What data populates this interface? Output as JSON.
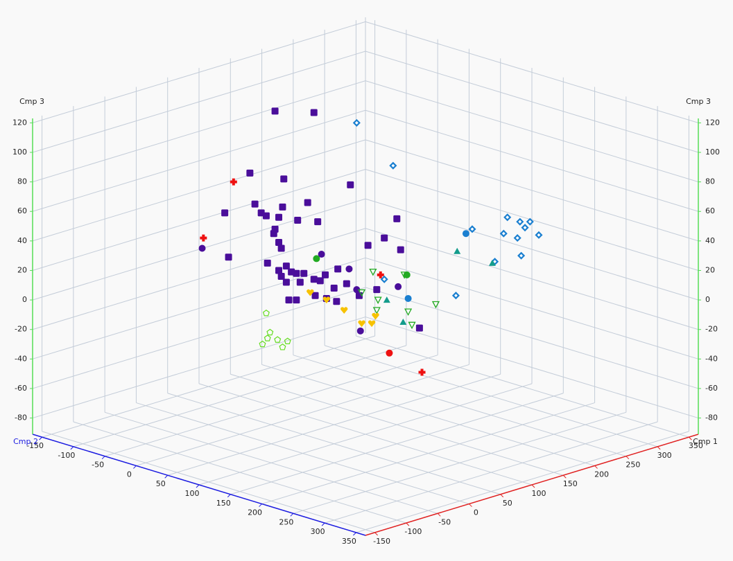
{
  "chart_data": {
    "type": "scatter3d",
    "xlabel": "Cmp 1",
    "ylabel": "Cmp 2",
    "zlabel": "Cmp 3",
    "xlim": [
      -165,
      365
    ],
    "ylim": [
      -165,
      365
    ],
    "zlim": [
      -91,
      123
    ],
    "xticks": [
      -150,
      -100,
      -50,
      0,
      50,
      100,
      150,
      200,
      250,
      300,
      350
    ],
    "yticks": [
      -150,
      -100,
      -50,
      0,
      50,
      100,
      150,
      200,
      250,
      300,
      350
    ],
    "zticks": [
      -80,
      -60,
      -40,
      -20,
      0,
      20,
      40,
      60,
      80,
      100,
      120
    ],
    "grid": true,
    "axis_colors": {
      "x": "#e02020",
      "y": "#1a1ae0",
      "z": "#55dd55"
    },
    "series": [
      {
        "color": "#4a0e9a",
        "marker": "square",
        "x": [
          28,
          59,
          8,
          35,
          88,
          -12,
          12,
          34,
          54,
          17,
          21,
          31,
          46,
          62,
          28,
          125,
          115,
          31,
          102,
          128,
          -9,
          22,
          33,
          37,
          31,
          33,
          41,
          45,
          51,
          59,
          68,
          78,
          37,
          48,
          64,
          85,
          75,
          109,
          39,
          45,
          60,
          69,
          77,
          95,
          143,
          27
        ],
        "y": [
          28,
          59,
          8,
          35,
          88,
          -12,
          12,
          34,
          54,
          17,
          21,
          31,
          46,
          62,
          28,
          125,
          115,
          31,
          102,
          128,
          -9,
          22,
          33,
          37,
          31,
          33,
          41,
          45,
          51,
          59,
          68,
          78,
          37,
          48,
          64,
          85,
          75,
          109,
          39,
          45,
          60,
          69,
          77,
          95,
          143,
          27
        ],
        "z": [
          128,
          127,
          86,
          82,
          78,
          59,
          65,
          63,
          66,
          59,
          57,
          56,
          54,
          53,
          48,
          55,
          42,
          39,
          37,
          34,
          29,
          25,
          35,
          23,
          20,
          16,
          19,
          18,
          18,
          14,
          17,
          21,
          12,
          12,
          13,
          11,
          8,
          7,
          0,
          0,
          3,
          1,
          -1,
          3,
          -19,
          45
        ]
      },
      {
        "color": "#4a0e9a",
        "marker": "circle",
        "x": [
          -30,
          65,
          87,
          93,
          126,
          96
        ],
        "y": [
          -30,
          65,
          87,
          93,
          126,
          96
        ],
        "z": [
          35,
          31,
          21,
          7,
          9,
          -21
        ]
      },
      {
        "color": "#ee1111",
        "marker": "cross",
        "x": [
          -5,
          -29,
          112,
          145
        ],
        "y": [
          -5,
          -29,
          112,
          145
        ],
        "z": [
          80,
          42,
          17,
          -49
        ]
      },
      {
        "color": "#ee1111",
        "marker": "circle",
        "x": [
          119
        ],
        "y": [
          119
        ],
        "z": [
          -36
        ]
      },
      {
        "color": "#1a7fd0",
        "marker": "diamond",
        "x": [
          93,
          122,
          185,
          213,
          223,
          231,
          227,
          210,
          238,
          221,
          224,
          203,
          172,
          115
        ],
        "y": [
          93,
          122,
          185,
          213,
          223,
          231,
          227,
          210,
          238,
          221,
          224,
          203,
          172,
          115
        ],
        "z": [
          120,
          91,
          48,
          56,
          53,
          53,
          49,
          45,
          44,
          42,
          30,
          26,
          3,
          14
        ]
      },
      {
        "color": "#1a7fd0",
        "marker": "circle",
        "x": [
          180,
          134
        ],
        "y": [
          180,
          134
        ],
        "z": [
          45,
          1
        ]
      },
      {
        "color": "#149c8c",
        "marker": "triangle",
        "x": [
          173,
          201,
          117,
          130
        ],
        "y": [
          173,
          201,
          117,
          130
        ],
        "z": [
          33,
          25,
          0,
          -15
        ]
      },
      {
        "color": "#22aa22",
        "marker": "circle",
        "x": [
          61,
          133
        ],
        "y": [
          61,
          133
        ],
        "z": [
          28,
          17
        ]
      },
      {
        "color": "#22aa22",
        "marker": "open-triangle-down",
        "x": [
          106,
          97,
          110,
          109,
          131,
          134,
          156,
          137
        ],
        "y": [
          106,
          97,
          110,
          109,
          131,
          134,
          156,
          137
        ],
        "z": [
          19,
          5,
          0,
          -7,
          17,
          -8,
          -3,
          -17
        ]
      },
      {
        "color": "#f7c200",
        "marker": "heart",
        "x": [
          56,
          69,
          83,
          108,
          97,
          105
        ],
        "y": [
          56,
          69,
          83,
          108,
          97,
          105
        ],
        "z": [
          5,
          0,
          -7,
          -11,
          -16,
          -16
        ]
      },
      {
        "color": "#66dd22",
        "marker": "open-pentagon",
        "x": [
          21,
          24,
          22,
          30,
          38,
          18,
          34
        ],
        "y": [
          21,
          24,
          22,
          30,
          38,
          18,
          34
        ],
        "z": [
          -9,
          -22,
          -26,
          -27,
          -28,
          -30,
          -32
        ]
      }
    ]
  }
}
